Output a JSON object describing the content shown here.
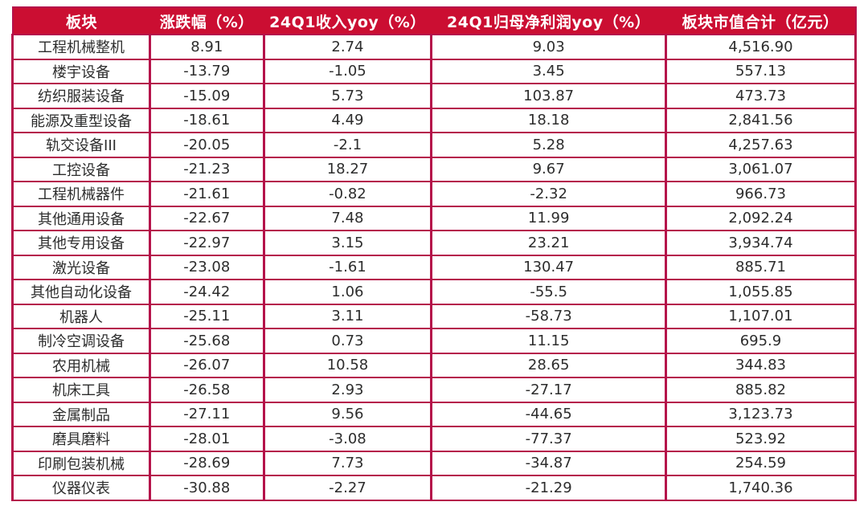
{
  "colors": {
    "header_bg": "#cb0e32",
    "header_text": "#ffffff",
    "grid_border": "#b5124a",
    "cell_bg": "#ffffff",
    "cell_text": "#2d2d2d"
  },
  "chart_data": {
    "type": "table",
    "title": "",
    "columns": [
      "板块",
      "涨跌幅（%）",
      "24Q1收入yoy（%）",
      "24Q1归母净利润yoy（%）",
      "板块市值合计（亿元）"
    ],
    "rows": [
      [
        "工程机械整机",
        "8.91",
        "2.74",
        "9.03",
        "4,516.90"
      ],
      [
        "楼宇设备",
        "-13.79",
        "-1.05",
        "3.45",
        "557.13"
      ],
      [
        "纺织服装设备",
        "-15.09",
        "5.73",
        "103.87",
        "473.73"
      ],
      [
        "能源及重型设备",
        "-18.61",
        "4.49",
        "18.18",
        "2,841.56"
      ],
      [
        "轨交设备III",
        "-20.05",
        "-2.1",
        "5.28",
        "4,257.63"
      ],
      [
        "工控设备",
        "-21.23",
        "18.27",
        "9.67",
        "3,061.07"
      ],
      [
        "工程机械器件",
        "-21.61",
        "-0.82",
        "-2.32",
        "966.73"
      ],
      [
        "其他通用设备",
        "-22.67",
        "7.48",
        "11.99",
        "2,092.24"
      ],
      [
        "其他专用设备",
        "-22.97",
        "3.15",
        "23.21",
        "3,934.74"
      ],
      [
        "激光设备",
        "-23.08",
        "-1.61",
        "130.47",
        "885.71"
      ],
      [
        "其他自动化设备",
        "-24.42",
        "1.06",
        "-55.5",
        "1,055.85"
      ],
      [
        "机器人",
        "-25.11",
        "3.11",
        "-58.73",
        "1,107.01"
      ],
      [
        "制冷空调设备",
        "-25.68",
        "0.73",
        "11.15",
        "695.9"
      ],
      [
        "农用机械",
        "-26.07",
        "10.58",
        "28.65",
        "344.83"
      ],
      [
        "机床工具",
        "-26.58",
        "2.93",
        "-27.17",
        "885.82"
      ],
      [
        "金属制品",
        "-27.11",
        "9.56",
        "-44.65",
        "3,123.73"
      ],
      [
        "磨具磨料",
        "-28.01",
        "-3.08",
        "-77.37",
        "523.92"
      ],
      [
        "印刷包装机械",
        "-28.69",
        "7.73",
        "-34.87",
        "254.59"
      ],
      [
        "仪器仪表",
        "-30.88",
        "-2.27",
        "-21.29",
        "1,740.36"
      ]
    ]
  }
}
